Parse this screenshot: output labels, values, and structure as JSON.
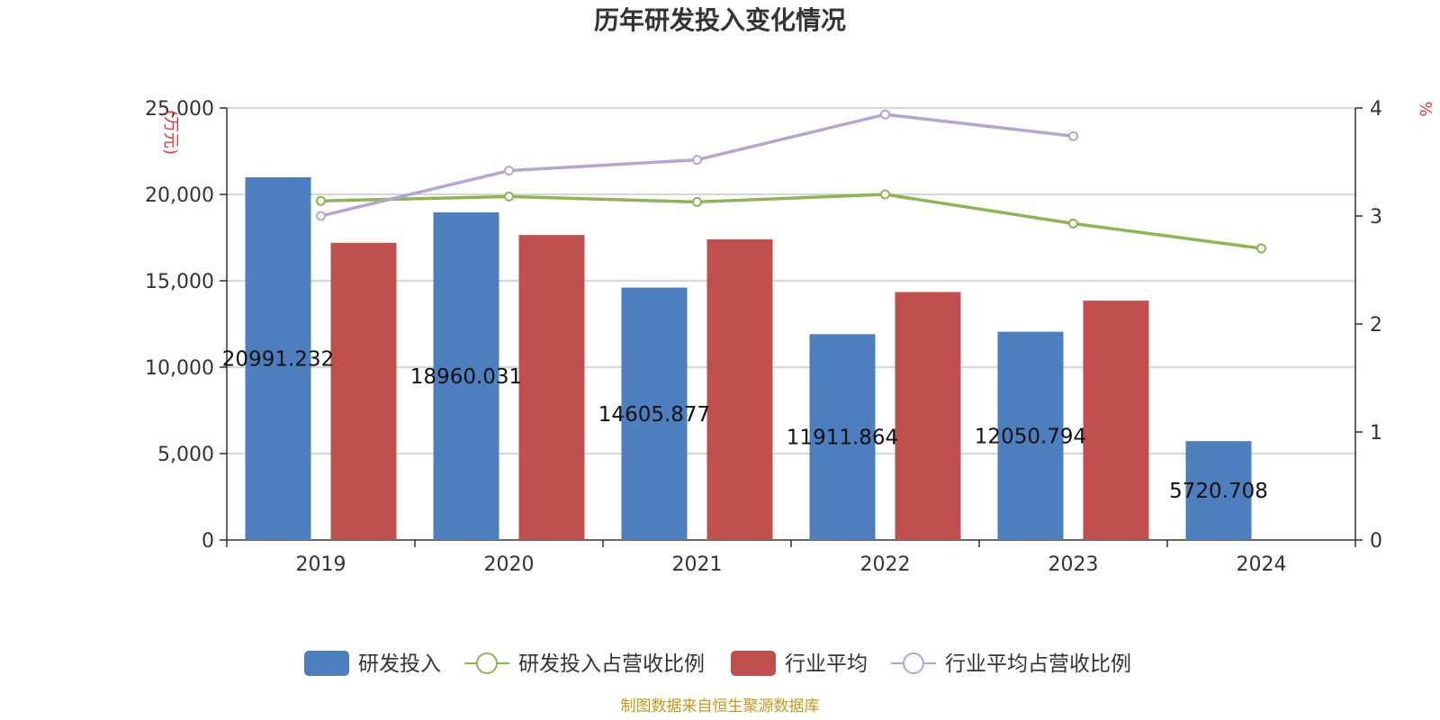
{
  "chart_data": {
    "type": "bar",
    "title": "历年研发投入变化情况",
    "categories": [
      "2019",
      "2020",
      "2021",
      "2022",
      "2023",
      "2024"
    ],
    "left_axis": {
      "unit": "(万元)",
      "ylim": [
        0,
        25000
      ],
      "ticks": [
        0,
        5000,
        10000,
        15000,
        20000,
        25000
      ],
      "tick_labels": [
        "0",
        "5,000",
        "10,000",
        "15,000",
        "20,000",
        "25,000"
      ]
    },
    "right_axis": {
      "unit": "%",
      "ylim": [
        0,
        4
      ],
      "ticks": [
        0,
        1,
        2,
        3,
        4
      ],
      "tick_labels": [
        "0",
        "1",
        "2",
        "3",
        "4"
      ]
    },
    "grid": true,
    "legend_position": "bottom",
    "series": [
      {
        "name": "研发投入",
        "kind": "bar",
        "axis": "left",
        "color": "#4d7ebd",
        "values": [
          20991.232,
          18960.031,
          14605.877,
          11911.864,
          12050.794,
          5720.708
        ],
        "labels": [
          "20991.232",
          "18960.031",
          "14605.877",
          "11911.864",
          "12050.794",
          "5720.708"
        ]
      },
      {
        "name": "研发投入占营收比例",
        "kind": "line",
        "axis": "right",
        "color": "#8db552",
        "values": [
          3.14,
          3.18,
          3.13,
          3.2,
          2.93,
          2.7
        ]
      },
      {
        "name": "行业平均",
        "kind": "bar",
        "axis": "left",
        "color": "#c0504d",
        "values": [
          17200,
          17650,
          17400,
          14350,
          13850,
          null
        ]
      },
      {
        "name": "行业平均占营收比例",
        "kind": "line",
        "axis": "right",
        "color": "#b3a6d1",
        "values": [
          3.0,
          3.42,
          3.52,
          3.94,
          3.74,
          null
        ]
      }
    ]
  },
  "source": "制图数据来自恒生聚源数据库"
}
